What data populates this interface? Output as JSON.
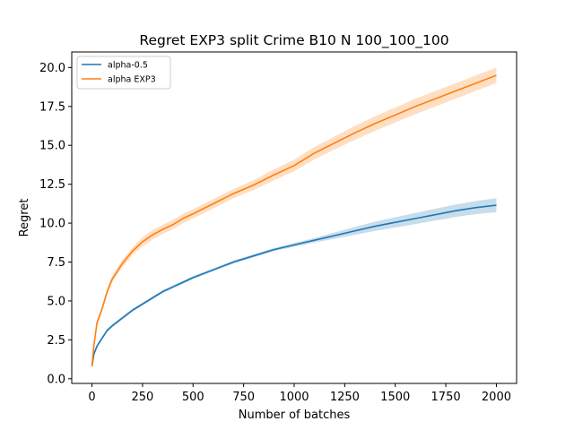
{
  "chart_data": {
    "type": "line",
    "title": "Regret EXP3 split Crime B10 N 100_100_100",
    "xlabel": "Number of batches",
    "ylabel": "Regret",
    "xlim": [
      -100,
      2100
    ],
    "ylim": [
      -0.3,
      21.0
    ],
    "xticks": [
      0,
      250,
      500,
      750,
      1000,
      1250,
      1500,
      1750,
      2000
    ],
    "xtick_labels": [
      "0",
      "250",
      "500",
      "750",
      "1000",
      "1250",
      "1500",
      "1750",
      "2000"
    ],
    "yticks": [
      0.0,
      2.5,
      5.0,
      7.5,
      10.0,
      12.5,
      15.0,
      17.5,
      20.0
    ],
    "ytick_labels": [
      "0.0",
      "2.5",
      "5.0",
      "7.5",
      "10.0",
      "12.5",
      "15.0",
      "17.5",
      "20.0"
    ],
    "grid": false,
    "legend_position": "top-left",
    "series": [
      {
        "name": "alpha-0.5",
        "color": "#1f77b4",
        "x": [
          0,
          10,
          25,
          50,
          75,
          100,
          150,
          200,
          250,
          300,
          350,
          400,
          450,
          500,
          600,
          700,
          800,
          900,
          1000,
          1100,
          1200,
          1300,
          1400,
          1500,
          1600,
          1700,
          1800,
          1900,
          2000
        ],
        "y": [
          0.8,
          1.6,
          2.1,
          2.6,
          3.1,
          3.4,
          3.9,
          4.4,
          4.8,
          5.2,
          5.6,
          5.9,
          6.2,
          6.5,
          7.0,
          7.5,
          7.9,
          8.3,
          8.6,
          8.9,
          9.2,
          9.5,
          9.8,
          10.05,
          10.3,
          10.55,
          10.8,
          11.0,
          11.15
        ],
        "band": [
          0.1,
          0.1,
          0.1,
          0.1,
          0.1,
          0.1,
          0.1,
          0.1,
          0.1,
          0.1,
          0.1,
          0.1,
          0.1,
          0.1,
          0.1,
          0.1,
          0.1,
          0.1,
          0.12,
          0.15,
          0.2,
          0.25,
          0.3,
          0.33,
          0.36,
          0.38,
          0.4,
          0.42,
          0.45
        ]
      },
      {
        "name": "alpha EXP3",
        "color": "#ff7f0e",
        "x": [
          0,
          10,
          25,
          50,
          75,
          100,
          150,
          200,
          250,
          300,
          350,
          400,
          450,
          500,
          600,
          700,
          800,
          900,
          1000,
          1100,
          1200,
          1300,
          1400,
          1500,
          1600,
          1700,
          1800,
          1900,
          2000
        ],
        "y": [
          0.8,
          2.2,
          3.6,
          4.5,
          5.6,
          6.4,
          7.4,
          8.2,
          8.8,
          9.25,
          9.6,
          9.9,
          10.3,
          10.6,
          11.25,
          11.9,
          12.45,
          13.1,
          13.7,
          14.5,
          15.15,
          15.8,
          16.4,
          16.95,
          17.5,
          18.0,
          18.5,
          19.0,
          19.5
        ],
        "band": [
          0.1,
          0.15,
          0.2,
          0.2,
          0.2,
          0.2,
          0.25,
          0.25,
          0.3,
          0.3,
          0.3,
          0.3,
          0.3,
          0.3,
          0.3,
          0.3,
          0.32,
          0.35,
          0.38,
          0.4,
          0.42,
          0.45,
          0.47,
          0.48,
          0.5,
          0.5,
          0.5,
          0.5,
          0.5
        ]
      }
    ]
  }
}
